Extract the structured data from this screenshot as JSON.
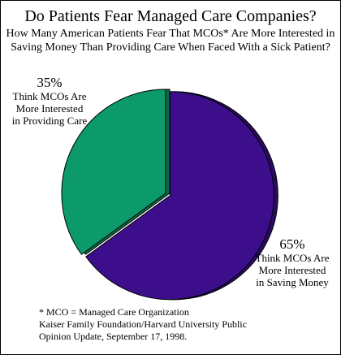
{
  "chart_data": {
    "type": "pie",
    "title": "Do Patients Fear Managed Care Companies?",
    "subtitle_lines": [
      "How Many American Patients Fear That MCOs* Are More Interested in",
      "Saving Money Than Providing Care When Faced With a Sick Patient?"
    ],
    "slices": [
      {
        "label_lines": [
          "Think MCOs Are",
          "More Interested",
          "in Saving Money"
        ],
        "value": 65,
        "display": "65%",
        "color": "#3D0E8C",
        "exploded": true
      },
      {
        "label_lines": [
          "Think MCOs Are",
          "More Interested",
          "in Providing Care"
        ],
        "value": 35,
        "display": "35%",
        "color": "#0D9A6A",
        "exploded": false
      }
    ]
  },
  "footnote_lines": [
    "* MCO = Managed Care Organization",
    "Kaiser Family Foundation/Harvard University Public",
    "Opinion Update, September 17, 1998."
  ]
}
